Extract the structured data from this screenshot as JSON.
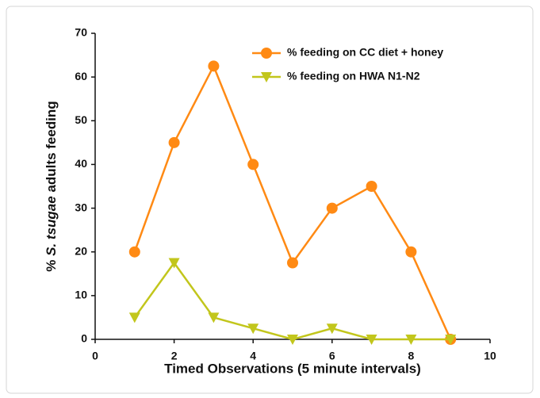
{
  "chart_data": {
    "type": "line",
    "xlabel": "Timed Observations (5 minute intervals)",
    "ylabel": [
      "% ",
      "S. tsugae",
      " adults feeding"
    ],
    "x": [
      1,
      2,
      3,
      4,
      5,
      6,
      7,
      8,
      9
    ],
    "series": [
      {
        "name": "% feeding on CC diet + honey",
        "color": "#ff8a14",
        "marker": "circle",
        "values": [
          20,
          45,
          62.5,
          40,
          17.5,
          30,
          35,
          20,
          0
        ]
      },
      {
        "name": "% feeding on HWA N1-N2",
        "color": "#c2c61c",
        "marker": "triangle-down",
        "values": [
          5,
          17.5,
          5,
          2.5,
          0,
          2.5,
          0,
          0,
          0
        ]
      }
    ],
    "xlim": [
      0,
      10
    ],
    "xticks": [
      0,
      2,
      4,
      6,
      8,
      10
    ],
    "ylim": [
      0,
      70
    ],
    "yticks": [
      0,
      10,
      20,
      30,
      40,
      50,
      60,
      70
    ],
    "legend": "upper right"
  }
}
